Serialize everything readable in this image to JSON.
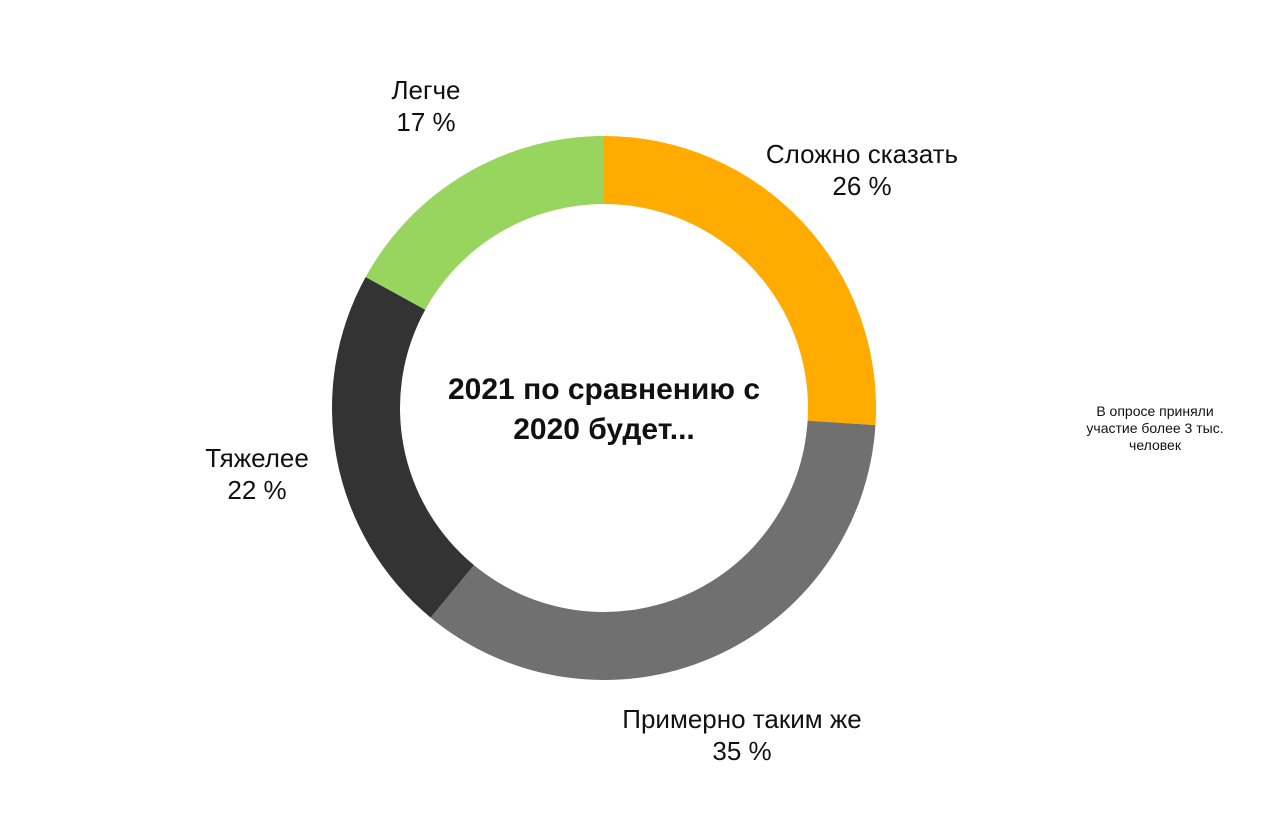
{
  "chart_data": {
    "type": "pie",
    "variant": "donut",
    "center_title_lines": [
      "2021 по сравнению с",
      "2020 будет..."
    ],
    "value_suffix": " %",
    "slices": [
      {
        "label": "Сложно сказать",
        "value": 26,
        "color": "#FFAB00"
      },
      {
        "label": "Примерно таким же",
        "value": 35,
        "color": "#707070"
      },
      {
        "label": "Тяжелее",
        "value": 22,
        "color": "#333333"
      },
      {
        "label": "Легче",
        "value": 17,
        "color": "#98D55E"
      }
    ],
    "legend": "none"
  },
  "note_lines": [
    "В опросе приняли",
    "участие более 3 тыс.",
    "человек"
  ]
}
